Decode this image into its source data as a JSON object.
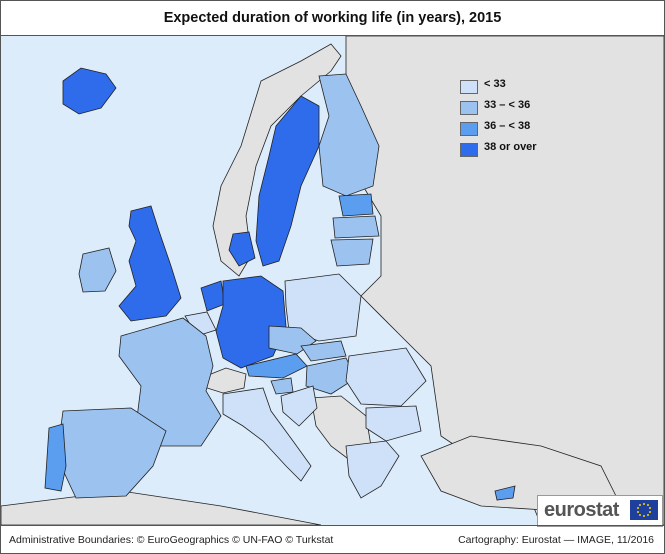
{
  "title": "Expected duration of working life (in years), 2015",
  "legend": [
    {
      "label": "< 33",
      "color": "#cfe1f8"
    },
    {
      "label": "33 – < 36",
      "color": "#9cc3f0"
    },
    {
      "label": "36 – < 38",
      "color": "#5b9ef0"
    },
    {
      "label": "38 or over",
      "color": "#2f6cec"
    }
  ],
  "footer": {
    "left": "Administrative Boundaries: © EuroGeographics © UN-FAO © Turkstat",
    "right": "Cartography: Eurostat — IMAGE, 11/2016"
  },
  "logo": {
    "text": "eurostat"
  },
  "colors": {
    "sea": "#dcecfa",
    "non_eu_land": "#e2e2e2",
    "border": "#222222"
  }
}
